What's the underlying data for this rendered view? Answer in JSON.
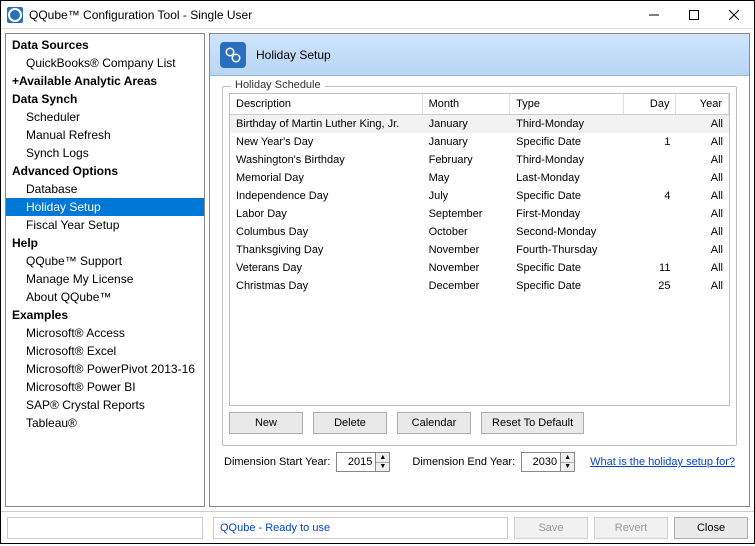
{
  "window": {
    "title": "QQube™ Configuration Tool - Single User"
  },
  "sidebar": {
    "groups": [
      {
        "label": "Data Sources",
        "items": [
          {
            "label": "QuickBooks® Company List"
          }
        ]
      },
      {
        "label": "+Available Analytic Areas",
        "items": []
      },
      {
        "label": "Data Synch",
        "items": [
          {
            "label": "Scheduler"
          },
          {
            "label": "Manual Refresh"
          },
          {
            "label": "Synch Logs"
          }
        ]
      },
      {
        "label": "Advanced Options",
        "items": [
          {
            "label": "Database"
          },
          {
            "label": "Holiday Setup",
            "selected": true
          },
          {
            "label": "Fiscal Year Setup"
          }
        ]
      },
      {
        "label": "Help",
        "items": [
          {
            "label": "QQube™ Support"
          },
          {
            "label": "Manage My License"
          },
          {
            "label": "About QQube™"
          }
        ]
      },
      {
        "label": "Examples",
        "items": [
          {
            "label": "Microsoft® Access"
          },
          {
            "label": "Microsoft® Excel"
          },
          {
            "label": "Microsoft® PowerPivot 2013-16"
          },
          {
            "label": "Microsoft® Power BI"
          },
          {
            "label": "SAP® Crystal Reports"
          },
          {
            "label": "Tableau®"
          }
        ]
      }
    ]
  },
  "panel": {
    "title": "Holiday Setup",
    "fieldset_label": "Holiday Schedule",
    "columns": [
      {
        "label": "Description",
        "align": "left"
      },
      {
        "label": "Month",
        "align": "left"
      },
      {
        "label": "Type",
        "align": "left"
      },
      {
        "label": "Day",
        "align": "right"
      },
      {
        "label": "Year",
        "align": "right"
      }
    ],
    "rows": [
      {
        "desc": "Birthday of Martin Luther King, Jr.",
        "month": "January",
        "type": "Third-Monday",
        "day": "",
        "year": "All",
        "selected": true
      },
      {
        "desc": "New Year's Day",
        "month": "January",
        "type": "Specific Date",
        "day": "1",
        "year": "All"
      },
      {
        "desc": "Washington's Birthday",
        "month": "February",
        "type": "Third-Monday",
        "day": "",
        "year": "All"
      },
      {
        "desc": "Memorial Day",
        "month": "May",
        "type": "Last-Monday",
        "day": "",
        "year": "All"
      },
      {
        "desc": "Independence Day",
        "month": "July",
        "type": "Specific Date",
        "day": "4",
        "year": "All"
      },
      {
        "desc": "Labor Day",
        "month": "September",
        "type": "First-Monday",
        "day": "",
        "year": "All"
      },
      {
        "desc": "Columbus Day",
        "month": "October",
        "type": "Second-Monday",
        "day": "",
        "year": "All"
      },
      {
        "desc": "Thanksgiving Day",
        "month": "November",
        "type": "Fourth-Thursday",
        "day": "",
        "year": "All"
      },
      {
        "desc": "Veterans Day",
        "month": "November",
        "type": "Specific Date",
        "day": "11",
        "year": "All"
      },
      {
        "desc": "Christmas Day",
        "month": "December",
        "type": "Specific Date",
        "day": "25",
        "year": "All"
      }
    ],
    "buttons": {
      "new": "New",
      "delete": "Delete",
      "calendar": "Calendar",
      "reset": "Reset To Default"
    },
    "dim": {
      "start_label": "Dimension Start Year:",
      "start_value": "2015",
      "end_label": "Dimension End Year:",
      "end_value": "2030",
      "help_link": "What is the holiday setup for?"
    }
  },
  "statusbar": {
    "text": "QQube - Ready to use",
    "save": "Save",
    "revert": "Revert",
    "close": "Close"
  },
  "arrow_color": "#e8a33d"
}
